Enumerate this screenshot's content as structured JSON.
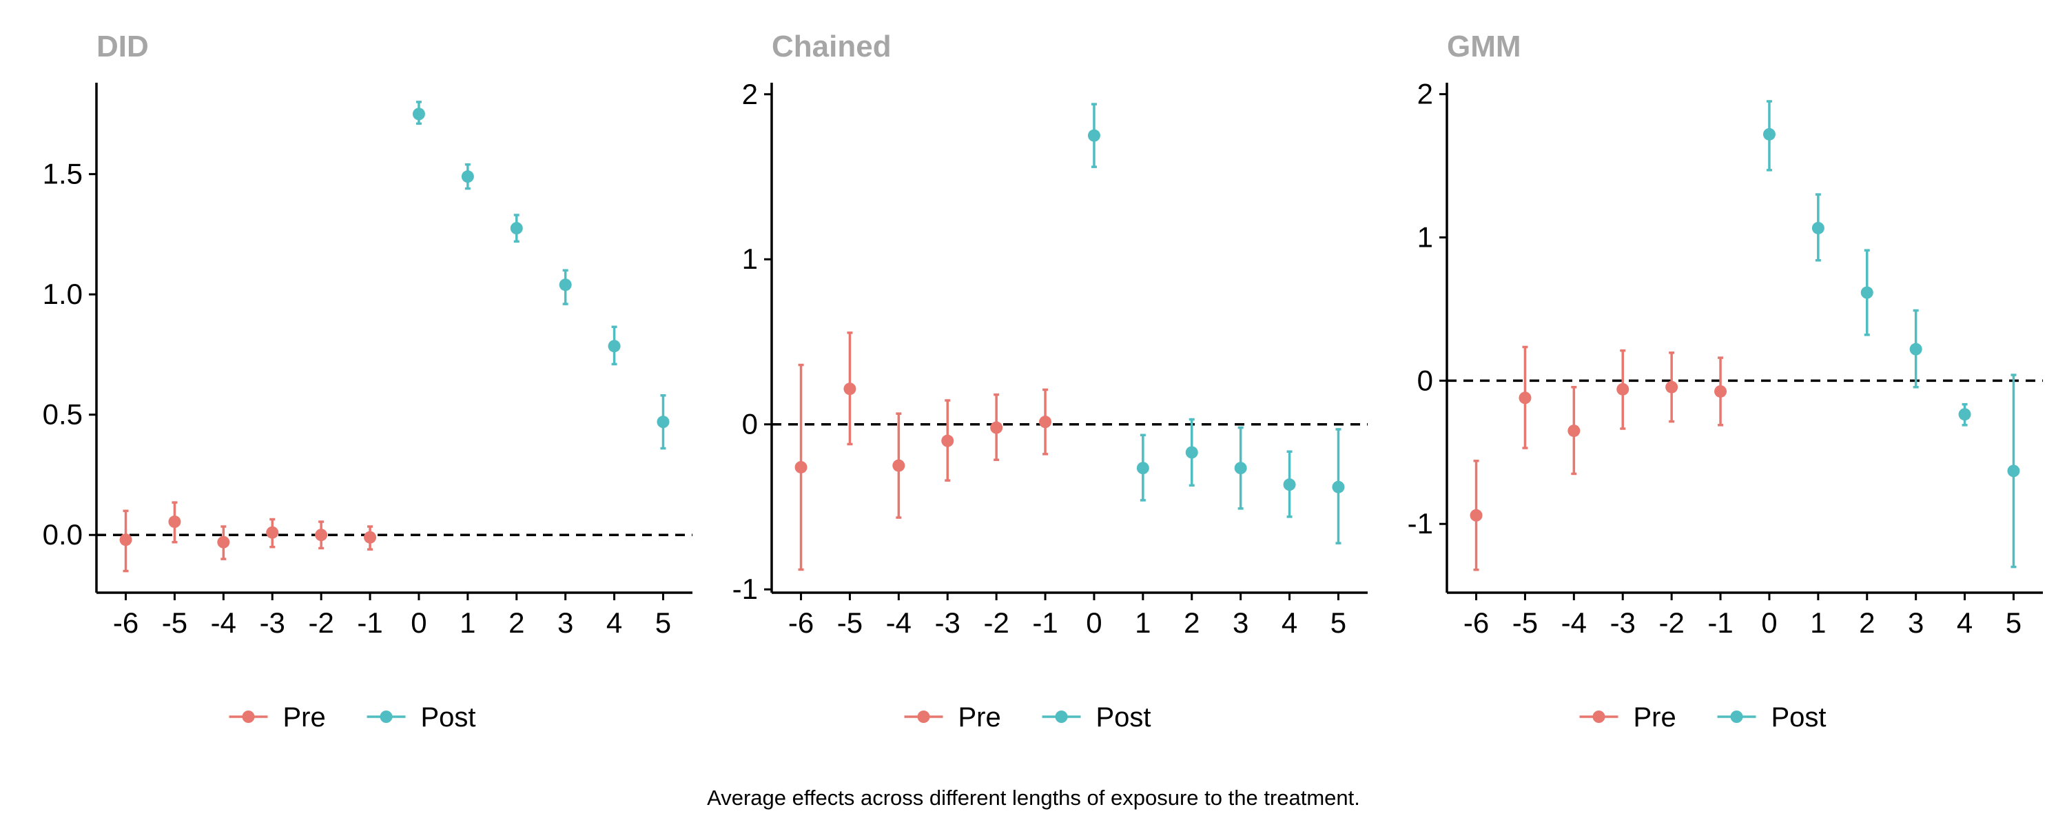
{
  "figure": {
    "caption": "Average effects across different lengths of exposure to the treatment."
  },
  "colors": {
    "pre": "#E8776F",
    "post": "#4FBDC1",
    "title": "#A6A6A6",
    "axis": "#000000"
  },
  "legend": {
    "position": "bottom",
    "labels": [
      "Pre",
      "Post"
    ]
  },
  "chart_data": [
    {
      "type": "scatter",
      "error_bars": true,
      "title": "DID",
      "xlabel": "",
      "ylabel": "",
      "x_ticks": [
        "-6",
        "-5",
        "-4",
        "-3",
        "-2",
        "-1",
        "0",
        "1",
        "2",
        "3",
        "4",
        "5"
      ],
      "y_ticks": [
        "0.0",
        "0.5",
        "1.0",
        "1.5"
      ],
      "y_tick_values": [
        0,
        0.5,
        1.0,
        1.5
      ],
      "ylim": [
        -0.24,
        1.88
      ],
      "reference_line": 0,
      "series": [
        {
          "name": "Pre",
          "color": "#E8776F",
          "points": [
            {
              "x": -6,
              "y": -0.02,
              "lo": -0.15,
              "hi": 0.1
            },
            {
              "x": -5,
              "y": 0.055,
              "lo": -0.03,
              "hi": 0.135
            },
            {
              "x": -4,
              "y": -0.03,
              "lo": -0.1,
              "hi": 0.035
            },
            {
              "x": -3,
              "y": 0.01,
              "lo": -0.05,
              "hi": 0.065
            },
            {
              "x": -2,
              "y": 0.0,
              "lo": -0.055,
              "hi": 0.055
            },
            {
              "x": -1,
              "y": -0.01,
              "lo": -0.06,
              "hi": 0.035
            }
          ]
        },
        {
          "name": "Post",
          "color": "#4FBDC1",
          "points": [
            {
              "x": 0,
              "y": 1.75,
              "lo": 1.71,
              "hi": 1.8
            },
            {
              "x": 1,
              "y": 1.49,
              "lo": 1.44,
              "hi": 1.54
            },
            {
              "x": 2,
              "y": 1.275,
              "lo": 1.22,
              "hi": 1.33
            },
            {
              "x": 3,
              "y": 1.04,
              "lo": 0.96,
              "hi": 1.1
            },
            {
              "x": 4,
              "y": 0.785,
              "lo": 0.71,
              "hi": 0.865
            },
            {
              "x": 5,
              "y": 0.47,
              "lo": 0.36,
              "hi": 0.58
            }
          ]
        }
      ]
    },
    {
      "type": "scatter",
      "error_bars": true,
      "title": "Chained",
      "xlabel": "",
      "ylabel": "",
      "x_ticks": [
        "-6",
        "-5",
        "-4",
        "-3",
        "-2",
        "-1",
        "0",
        "1",
        "2",
        "3",
        "4",
        "5"
      ],
      "y_ticks": [
        "-1",
        "0",
        "1",
        "2"
      ],
      "y_tick_values": [
        -1,
        0,
        1,
        2
      ],
      "ylim": [
        -1.02,
        2.07
      ],
      "reference_line": 0,
      "series": [
        {
          "name": "Pre",
          "color": "#E8776F",
          "points": [
            {
              "x": -6,
              "y": -0.26,
              "lo": -0.88,
              "hi": 0.36
            },
            {
              "x": -5,
              "y": 0.215,
              "lo": -0.12,
              "hi": 0.555
            },
            {
              "x": -4,
              "y": -0.25,
              "lo": -0.565,
              "hi": 0.065
            },
            {
              "x": -3,
              "y": -0.1,
              "lo": -0.34,
              "hi": 0.145
            },
            {
              "x": -2,
              "y": -0.02,
              "lo": -0.215,
              "hi": 0.18
            },
            {
              "x": -1,
              "y": 0.015,
              "lo": -0.18,
              "hi": 0.21
            }
          ]
        },
        {
          "name": "Post",
          "color": "#4FBDC1",
          "points": [
            {
              "x": 0,
              "y": 1.75,
              "lo": 1.56,
              "hi": 1.94
            },
            {
              "x": 1,
              "y": -0.265,
              "lo": -0.46,
              "hi": -0.065
            },
            {
              "x": 2,
              "y": -0.17,
              "lo": -0.37,
              "hi": 0.03
            },
            {
              "x": 3,
              "y": -0.265,
              "lo": -0.51,
              "hi": -0.02
            },
            {
              "x": 4,
              "y": -0.365,
              "lo": -0.56,
              "hi": -0.165
            },
            {
              "x": 5,
              "y": -0.38,
              "lo": -0.72,
              "hi": -0.03
            }
          ]
        }
      ]
    },
    {
      "type": "scatter",
      "error_bars": true,
      "title": "GMM",
      "xlabel": "",
      "ylabel": "",
      "x_ticks": [
        "-6",
        "-5",
        "-4",
        "-3",
        "-2",
        "-1",
        "0",
        "1",
        "2",
        "3",
        "4",
        "5"
      ],
      "y_ticks": [
        "-1",
        "0",
        "1",
        "2"
      ],
      "y_tick_values": [
        -1,
        0,
        1,
        2
      ],
      "ylim": [
        -1.48,
        2.08
      ],
      "reference_line": 0,
      "series": [
        {
          "name": "Pre",
          "color": "#E8776F",
          "points": [
            {
              "x": -6,
              "y": -0.94,
              "lo": -1.32,
              "hi": -0.56
            },
            {
              "x": -5,
              "y": -0.12,
              "lo": -0.47,
              "hi": 0.235
            },
            {
              "x": -4,
              "y": -0.35,
              "lo": -0.65,
              "hi": -0.045
            },
            {
              "x": -3,
              "y": -0.06,
              "lo": -0.335,
              "hi": 0.21
            },
            {
              "x": -2,
              "y": -0.045,
              "lo": -0.285,
              "hi": 0.195
            },
            {
              "x": -1,
              "y": -0.075,
              "lo": -0.31,
              "hi": 0.16
            }
          ]
        },
        {
          "name": "Post",
          "color": "#4FBDC1",
          "points": [
            {
              "x": 0,
              "y": 1.72,
              "lo": 1.47,
              "hi": 1.95
            },
            {
              "x": 1,
              "y": 1.065,
              "lo": 0.84,
              "hi": 1.3
            },
            {
              "x": 2,
              "y": 0.615,
              "lo": 0.32,
              "hi": 0.91
            },
            {
              "x": 3,
              "y": 0.22,
              "lo": -0.045,
              "hi": 0.49
            },
            {
              "x": 4,
              "y": -0.235,
              "lo": -0.31,
              "hi": -0.165
            },
            {
              "x": 5,
              "y": -0.63,
              "lo": -1.3,
              "hi": 0.04
            }
          ]
        }
      ]
    }
  ]
}
